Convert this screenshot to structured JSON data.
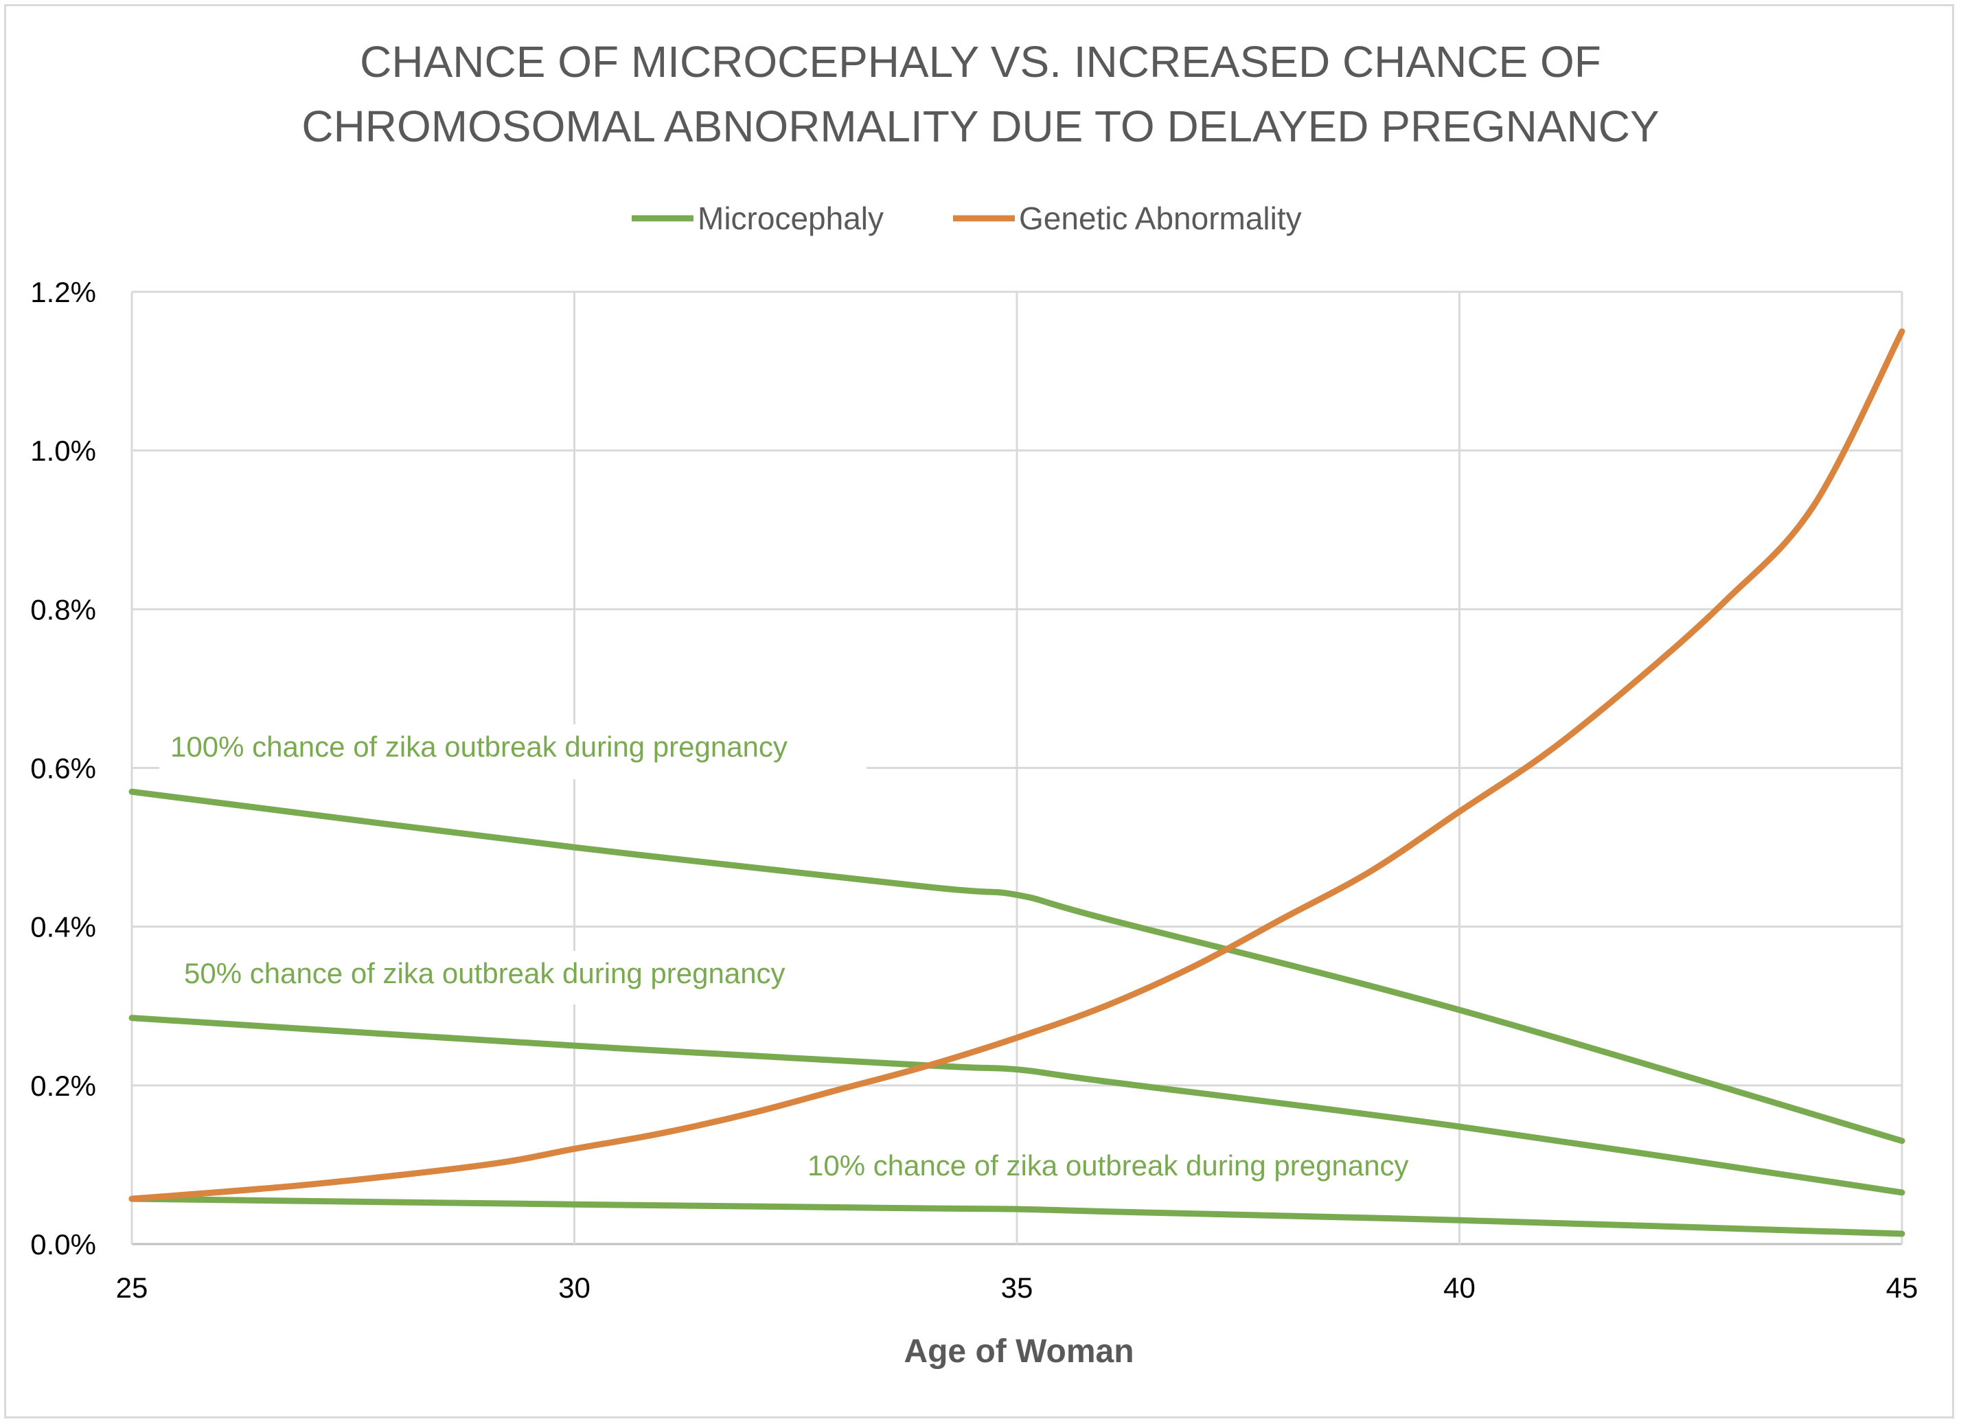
{
  "chart_data": {
    "type": "line",
    "title_lines": [
      "CHANCE OF MICROCEPHALY VS. INCREASED CHANCE OF",
      "CHROMOSOMAL ABNORMALITY DUE TO DELAYED PREGNANCY"
    ],
    "xlabel": "Age of Woman",
    "ylabel": "",
    "xlim": [
      25,
      45
    ],
    "ylim": [
      0,
      1.2
    ],
    "x_ticks": [
      25,
      30,
      35,
      40,
      45
    ],
    "x_tick_labels": [
      "25",
      "30",
      "35",
      "40",
      "45"
    ],
    "y_ticks": [
      0,
      0.2,
      0.4,
      0.6,
      0.8,
      1.0,
      1.2
    ],
    "y_tick_labels": [
      "0.0%",
      "0.2%",
      "0.4%",
      "0.6%",
      "0.8%",
      "1.0%",
      "1.2%"
    ],
    "grid": true,
    "legend_position": "top-center",
    "legend": [
      {
        "label": "Microcephaly",
        "color": "#7aaa50"
      },
      {
        "label": "Genetic Abnormality",
        "color": "#d98540"
      }
    ],
    "series": [
      {
        "name": "Microcephaly",
        "label": "100% chance of zika outbreak during pregnancy",
        "color": "#7aaa50",
        "x": [
          25,
          30,
          34,
          35,
          36,
          40,
          45
        ],
        "values": [
          0.57,
          0.5,
          0.45,
          0.44,
          0.41,
          0.295,
          0.13
        ]
      },
      {
        "name": "Microcephaly",
        "label": "50% chance of zika outbreak during pregnancy",
        "color": "#7aaa50",
        "x": [
          25,
          30,
          34,
          35,
          36,
          40,
          45
        ],
        "values": [
          0.285,
          0.25,
          0.225,
          0.22,
          0.205,
          0.148,
          0.065
        ]
      },
      {
        "name": "Microcephaly",
        "label": "10% chance of zika outbreak during pregnancy",
        "color": "#7aaa50",
        "x": [
          25,
          30,
          34,
          35,
          36,
          40,
          45
        ],
        "values": [
          0.057,
          0.05,
          0.045,
          0.044,
          0.041,
          0.03,
          0.013
        ]
      },
      {
        "name": "Genetic Abnormality",
        "color": "#d98540",
        "x": [
          25,
          27,
          29,
          30,
          31,
          32,
          33,
          34,
          35,
          36,
          37,
          38,
          39,
          40,
          41,
          42,
          43,
          44,
          45
        ],
        "values": [
          0.057,
          0.075,
          0.1,
          0.12,
          0.14,
          0.165,
          0.195,
          0.225,
          0.26,
          0.3,
          0.35,
          0.41,
          0.47,
          0.545,
          0.62,
          0.71,
          0.81,
          0.93,
          1.15
        ]
      }
    ]
  }
}
